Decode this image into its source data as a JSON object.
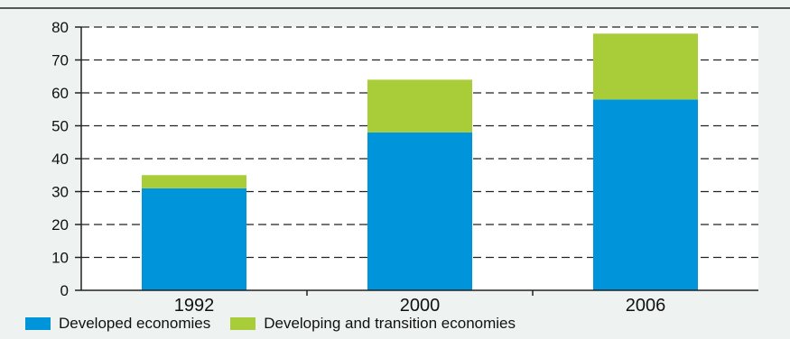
{
  "chart_data": {
    "type": "bar",
    "stacked": true,
    "categories": [
      "1992",
      "2000",
      "2006"
    ],
    "series": [
      {
        "name": "Developed economies",
        "values": [
          31,
          48,
          58
        ],
        "color": "#0095da"
      },
      {
        "name": "Developing and transition economies",
        "values": [
          4,
          16,
          20
        ],
        "color": "#a8cd38"
      }
    ],
    "ylim": [
      0,
      80
    ],
    "yticks": [
      0,
      10,
      20,
      30,
      40,
      50,
      60,
      70,
      80
    ],
    "grid": true,
    "grid_style": "dashed",
    "legend_position": "bottom",
    "background_color": "#eef3f1"
  }
}
